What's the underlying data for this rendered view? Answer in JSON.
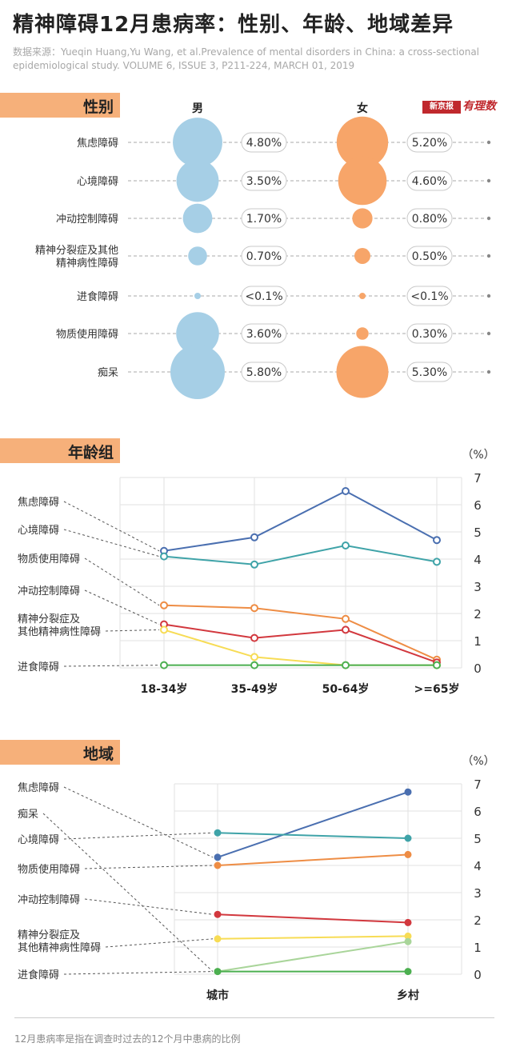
{
  "title": "精神障碍12月患病率：性别、年龄、地域差异",
  "source": "数据来源：Yueqin Huang,Yu Wang, et al.Prevalence of mental disorders in China: a cross-sectional epidemiological study. VOLUME 6, ISSUE 3, P211-224, MARCH 01, 2019",
  "logo": {
    "box_text": "新京报",
    "script_text": "有理数"
  },
  "footnote": "12月患病率是指在调查时过去的12个月中患病的比例",
  "sections": {
    "gender": "性别",
    "age": "年龄组",
    "region": "地域"
  },
  "colors": {
    "male": "#a6cfe6",
    "female": "#f7a569",
    "anxiety": "#4a6fb0",
    "mood": "#3fa3a8",
    "substance": "#ee8d45",
    "impulse": "#d2383e",
    "schizo": "#f7dc55",
    "eating": "#4caf50",
    "dementia": "#a9d59a"
  },
  "chart_data": [
    {
      "type": "bubble",
      "series_names": [
        "男",
        "女"
      ],
      "categories": [
        "焦虑障碍",
        "心境障碍",
        "冲动控制障碍",
        "精神分裂症及其他|精神病性障碍",
        "进食障碍",
        "物质使用障碍",
        "痴呆"
      ],
      "labels_male": [
        "4.80%",
        "3.50%",
        "1.70%",
        "0.70%",
        "<0.1%",
        "3.60%",
        "5.80%"
      ],
      "labels_female": [
        "5.20%",
        "4.60%",
        "0.80%",
        "0.50%",
        "<0.1%",
        "0.30%",
        "5.30%"
      ],
      "male": [
        4.8,
        3.5,
        1.7,
        0.7,
        0.05,
        3.6,
        5.8
      ],
      "female": [
        5.2,
        4.6,
        0.8,
        0.5,
        0.05,
        0.3,
        5.3
      ]
    },
    {
      "type": "line",
      "unit": "（%）",
      "categories": [
        "18-34岁",
        "35-49岁",
        "50-64岁",
        ">=65岁"
      ],
      "ylim": [
        0,
        7
      ],
      "yticks": [
        0,
        1,
        2,
        3,
        4,
        5,
        6,
        7
      ],
      "label_order": [
        "焦虑障碍",
        "心境障碍",
        "物质使用障碍",
        "冲动控制障碍",
        "精神分裂症及|其他精神病性障碍",
        "进食障碍"
      ],
      "series": [
        {
          "name": "焦虑障碍",
          "color_key": "anxiety",
          "values": [
            4.3,
            4.8,
            6.5,
            4.7
          ]
        },
        {
          "name": "心境障碍",
          "color_key": "mood",
          "values": [
            4.1,
            3.8,
            4.5,
            3.9
          ]
        },
        {
          "name": "物质使用障碍",
          "color_key": "substance",
          "values": [
            2.3,
            2.2,
            1.8,
            0.3
          ]
        },
        {
          "name": "冲动控制障碍",
          "color_key": "impulse",
          "values": [
            1.6,
            1.1,
            1.4,
            0.2
          ]
        },
        {
          "name": "精神分裂症及其他精神病性障碍",
          "color_key": "schizo",
          "values": [
            1.4,
            0.4,
            0.1,
            0.1
          ]
        },
        {
          "name": "进食障碍",
          "color_key": "eating",
          "values": [
            0.1,
            0.1,
            0.1,
            0.1
          ]
        }
      ]
    },
    {
      "type": "line",
      "unit": "（%）",
      "categories": [
        "城市",
        "乡村"
      ],
      "ylim": [
        0,
        7
      ],
      "yticks": [
        0,
        1,
        2,
        3,
        4,
        5,
        6,
        7
      ],
      "label_order": [
        "焦虑障碍",
        "痴呆",
        "心境障碍",
        "物质使用障碍",
        "冲动控制障碍",
        "精神分裂症及|其他精神病性障碍",
        "进食障碍"
      ],
      "series": [
        {
          "name": "焦虑障碍",
          "color_key": "anxiety",
          "values": [
            4.3,
            6.7
          ]
        },
        {
          "name": "心境障碍",
          "color_key": "mood",
          "values": [
            5.2,
            5.0
          ]
        },
        {
          "name": "物质使用障碍",
          "color_key": "substance",
          "values": [
            4.0,
            4.4
          ]
        },
        {
          "name": "冲动控制障碍",
          "color_key": "impulse",
          "values": [
            2.2,
            1.9
          ]
        },
        {
          "name": "精神分裂症及其他精神病性障碍",
          "color_key": "schizo",
          "values": [
            1.3,
            1.4
          ]
        },
        {
          "name": "痴呆",
          "color_key": "dementia",
          "values": [
            0.1,
            1.2
          ]
        },
        {
          "name": "进食障碍",
          "color_key": "eating",
          "values": [
            0.1,
            0.1
          ]
        }
      ]
    }
  ]
}
